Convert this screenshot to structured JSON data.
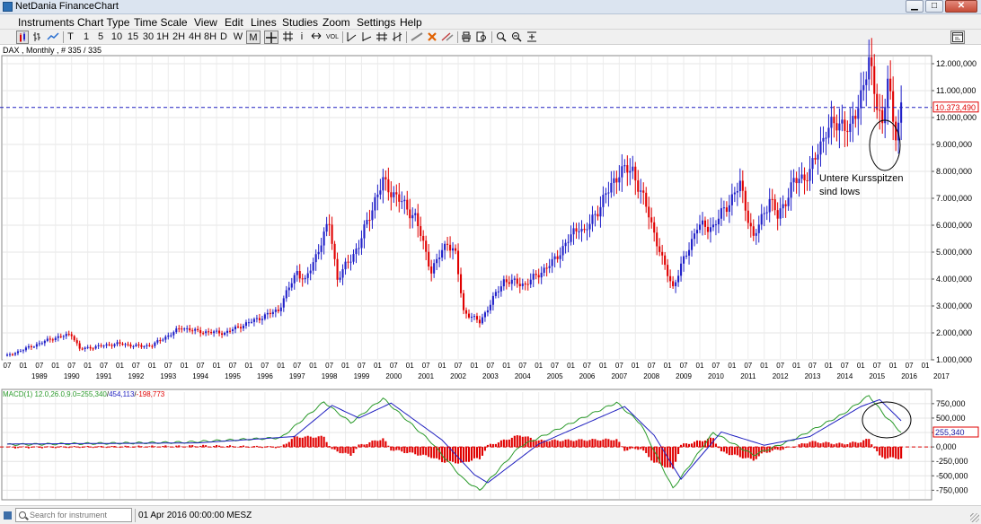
{
  "window": {
    "title": "NetDania FinanceChart"
  },
  "menu": [
    "Instruments",
    "Chart Type",
    "Time Scale",
    "View",
    "Edit",
    "Lines",
    "Studies",
    "Zoom",
    "Settings",
    "Help"
  ],
  "toolbar": {
    "periods": [
      "T",
      "1",
      "5",
      "10",
      "15",
      "30",
      "1H",
      "2H",
      "4H",
      "8H",
      "D",
      "W",
      "M"
    ],
    "selected_period": "M",
    "text_tool": "i",
    "vol_label": "VOL"
  },
  "chart_info": "DAX , Monthly , # 335 / 335",
  "chart_data": [
    {
      "type": "candlestick",
      "instrument": "DAX",
      "timeframe": "Monthly",
      "x_range": [
        "1988-07",
        "2017-03"
      ],
      "ylim": [
        1000,
        12500
      ],
      "y_tick_labels": [
        "1.000,000",
        "2.000,000",
        "3.000,000",
        "4.000,000",
        "5.000,000",
        "6.000,000",
        "7.000,000",
        "8.000,000",
        "9.000,000",
        "10.000,000",
        "11.000,000",
        "12.000,000"
      ],
      "year_labels": [
        "1989",
        "1990",
        "1991",
        "1992",
        "1993",
        "1994",
        "1995",
        "1996",
        "1997",
        "1998",
        "1999",
        "2000",
        "2001",
        "2002",
        "2003",
        "2004",
        "2005",
        "2006",
        "2007",
        "2008",
        "2009",
        "2010",
        "2011",
        "2012",
        "2013",
        "2014",
        "2015",
        "2016",
        "2017"
      ],
      "month_labels": [
        "07",
        "01"
      ],
      "current_price": 10373.49,
      "current_price_label": "10.373,490",
      "up_color": "#2020c8",
      "down_color": "#e00000",
      "grid": true,
      "series": [
        {
          "name": "DAX",
          "anchor_closes": [
            [
              "1988-07",
              1150
            ],
            [
              "1989-12",
              1800
            ],
            [
              "1990-07",
              1950
            ],
            [
              "1990-10",
              1400
            ],
            [
              "1991-12",
              1600
            ],
            [
              "1992-09",
              1500
            ],
            [
              "1993-01",
              1550
            ],
            [
              "1993-12",
              2200
            ],
            [
              "1994-06",
              2050
            ],
            [
              "1995-04",
              2000
            ],
            [
              "1996-12",
              2850
            ],
            [
              "1997-07",
              4300
            ],
            [
              "1997-10",
              3900
            ],
            [
              "1998-07",
              6100
            ],
            [
              "1998-10",
              4000
            ],
            [
              "1999-06",
              5250
            ],
            [
              "1999-12",
              6950
            ],
            [
              "2000-03",
              7600
            ],
            [
              "2001-03",
              6300
            ],
            [
              "2001-09",
              4300
            ],
            [
              "2002-03",
              5400
            ],
            [
              "2002-06",
              4900
            ],
            [
              "2002-09",
              2800
            ],
            [
              "2003-03",
              2400
            ],
            [
              "2003-12",
              3950
            ],
            [
              "2004-08",
              3800
            ],
            [
              "2005-06",
              4600
            ],
            [
              "2006-04",
              6000
            ],
            [
              "2006-06",
              5700
            ],
            [
              "2007-07",
              8000
            ],
            [
              "2007-12",
              8050
            ],
            [
              "2008-06",
              6400
            ],
            [
              "2008-11",
              4700
            ],
            [
              "2009-03",
              3700
            ],
            [
              "2009-12",
              5950
            ],
            [
              "2010-06",
              5950
            ],
            [
              "2011-04",
              7500
            ],
            [
              "2011-09",
              5500
            ],
            [
              "2012-03",
              7000
            ],
            [
              "2012-06",
              6300
            ],
            [
              "2012-12",
              7600
            ],
            [
              "2013-06",
              7950
            ],
            [
              "2013-12",
              9550
            ],
            [
              "2014-06",
              9850
            ],
            [
              "2014-09",
              9450
            ],
            [
              "2015-04",
              12000
            ],
            [
              "2015-06",
              11000
            ],
            [
              "2015-08",
              10250
            ],
            [
              "2015-09",
              9700
            ],
            [
              "2015-11",
              11400
            ],
            [
              "2016-01",
              9800
            ],
            [
              "2016-02",
              9500
            ],
            [
              "2016-04",
              10373
            ]
          ]
        }
      ],
      "annotation": "Untere Kursspitzen sind lows"
    },
    {
      "type": "line+bar",
      "title": "MACD(1) 12.0,26.0,9.0=",
      "values_label": {
        "macd": "255,340",
        "signal": "454,113",
        "histogram": "-198,773"
      },
      "current_label": "255,340",
      "ylim": [
        -900,
        950
      ],
      "y_tick_labels": [
        "-750,000",
        "-500,000",
        "-250,000",
        "0,000",
        "250,000",
        "500,000",
        "750,000"
      ],
      "series": [
        {
          "name": "MACD",
          "color": "#2a9a2a",
          "anchors": [
            [
              "1988-07",
              40
            ],
            [
              "1994-01",
              80
            ],
            [
              "1997-01",
              160
            ],
            [
              "1998-05",
              780
            ],
            [
              "1999-03",
              420
            ],
            [
              "2000-03",
              840
            ],
            [
              "2001-09",
              80
            ],
            [
              "2002-09",
              -560
            ],
            [
              "2003-03",
              -750
            ],
            [
              "2004-06",
              10
            ],
            [
              "2007-06",
              770
            ],
            [
              "2008-03",
              400
            ],
            [
              "2009-03",
              -720
            ],
            [
              "2010-06",
              250
            ],
            [
              "2011-09",
              -140
            ],
            [
              "2012-12",
              130
            ],
            [
              "2014-06",
              560
            ],
            [
              "2015-04",
              890
            ],
            [
              "2015-10",
              540
            ],
            [
              "2016-04",
              255
            ]
          ]
        },
        {
          "name": "Signal",
          "color": "#2020c0",
          "anchors": [
            [
              "1988-07",
              50
            ],
            [
              "1994-06",
              70
            ],
            [
              "1997-06",
              180
            ],
            [
              "1998-08",
              720
            ],
            [
              "1999-06",
              500
            ],
            [
              "2000-06",
              760
            ],
            [
              "2002-01",
              120
            ],
            [
              "2003-01",
              -480
            ],
            [
              "2003-06",
              -620
            ],
            [
              "2005-01",
              50
            ],
            [
              "2007-09",
              700
            ],
            [
              "2008-08",
              200
            ],
            [
              "2009-06",
              -560
            ],
            [
              "2010-09",
              260
            ],
            [
              "2012-01",
              30
            ],
            [
              "2013-06",
              180
            ],
            [
              "2015-01",
              700
            ],
            [
              "2015-08",
              820
            ],
            [
              "2016-04",
              454
            ]
          ]
        },
        {
          "name": "Histogram",
          "color": "#e00000"
        }
      ]
    }
  ],
  "status": {
    "search_placeholder": "Search for instrument",
    "datetime": "01 Apr 2016 00:00:00 MESZ"
  }
}
